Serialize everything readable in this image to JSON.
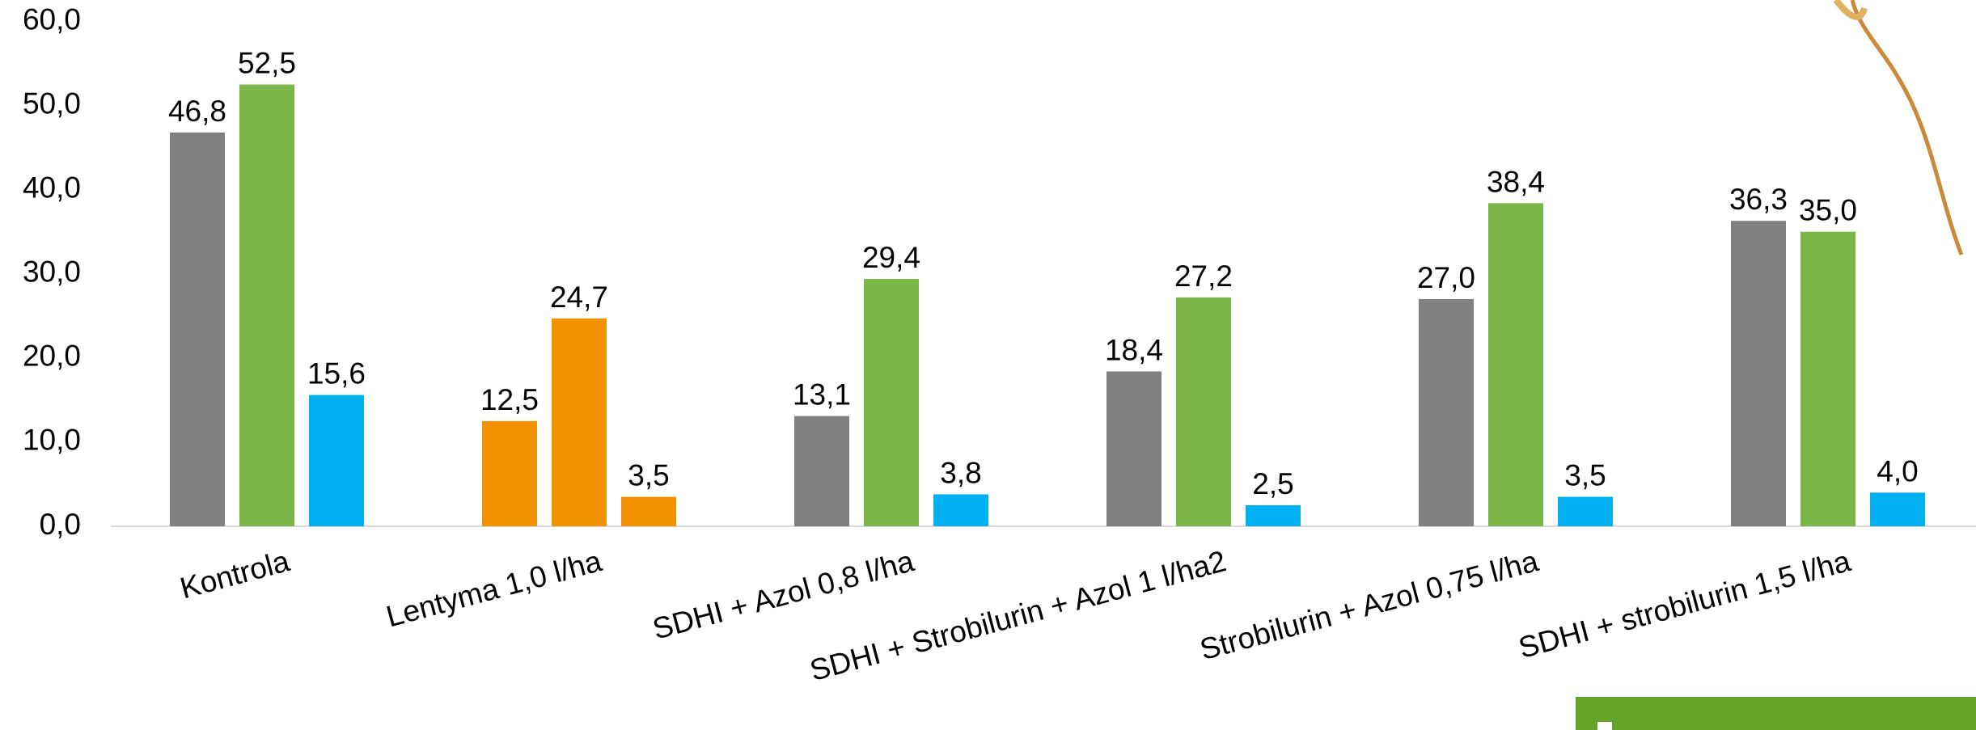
{
  "chart_data": {
    "type": "bar",
    "categories": [
      "Kontrola",
      "Lentyma 1,0 l/ha",
      "SDHI + Azol 0,8 l/ha",
      "SDHI + Strobilurin + Azol 1 l/ha2",
      "Strobilurin + Azol 0,75 l/ha",
      "SDHI + strobilurin 1,5 l/ha"
    ],
    "series": [
      {
        "colors": [
          "#808080",
          "#f39200",
          "#808080",
          "#808080",
          "#808080",
          "#808080"
        ],
        "values": [
          46.8,
          12.5,
          13.1,
          18.4,
          27.0,
          36.3
        ],
        "value_labels": [
          "46,8",
          "12,5",
          "13,1",
          "18,4",
          "27,0",
          "36,3"
        ]
      },
      {
        "colors": [
          "#7ab648",
          "#f39200",
          "#7ab648",
          "#7ab648",
          "#7ab648",
          "#7ab648"
        ],
        "values": [
          52.5,
          24.7,
          29.4,
          27.2,
          38.4,
          35.0
        ],
        "value_labels": [
          "52,5",
          "24,7",
          "29,4",
          "27,2",
          "38,4",
          "35,0"
        ]
      },
      {
        "colors": [
          "#00b0f0",
          "#f39200",
          "#00b0f0",
          "#00b0f0",
          "#00b0f0",
          "#00b0f0"
        ],
        "values": [
          15.6,
          3.5,
          3.8,
          2.5,
          3.5,
          4.0
        ],
        "value_labels": [
          "15,6",
          "3,5",
          "3,8",
          "2,5",
          "3,5",
          "4,0"
        ]
      }
    ],
    "ylim": [
      0,
      60
    ],
    "yticks": [
      {
        "value": 0,
        "label": "0,0"
      },
      {
        "value": 10,
        "label": "10,0"
      },
      {
        "value": 20,
        "label": "20,0"
      },
      {
        "value": 30,
        "label": "30,0"
      },
      {
        "value": 40,
        "label": "40,0"
      },
      {
        "value": 50,
        "label": "50,0"
      },
      {
        "value": 60,
        "label": "60,0"
      }
    ],
    "grid": false
  }
}
